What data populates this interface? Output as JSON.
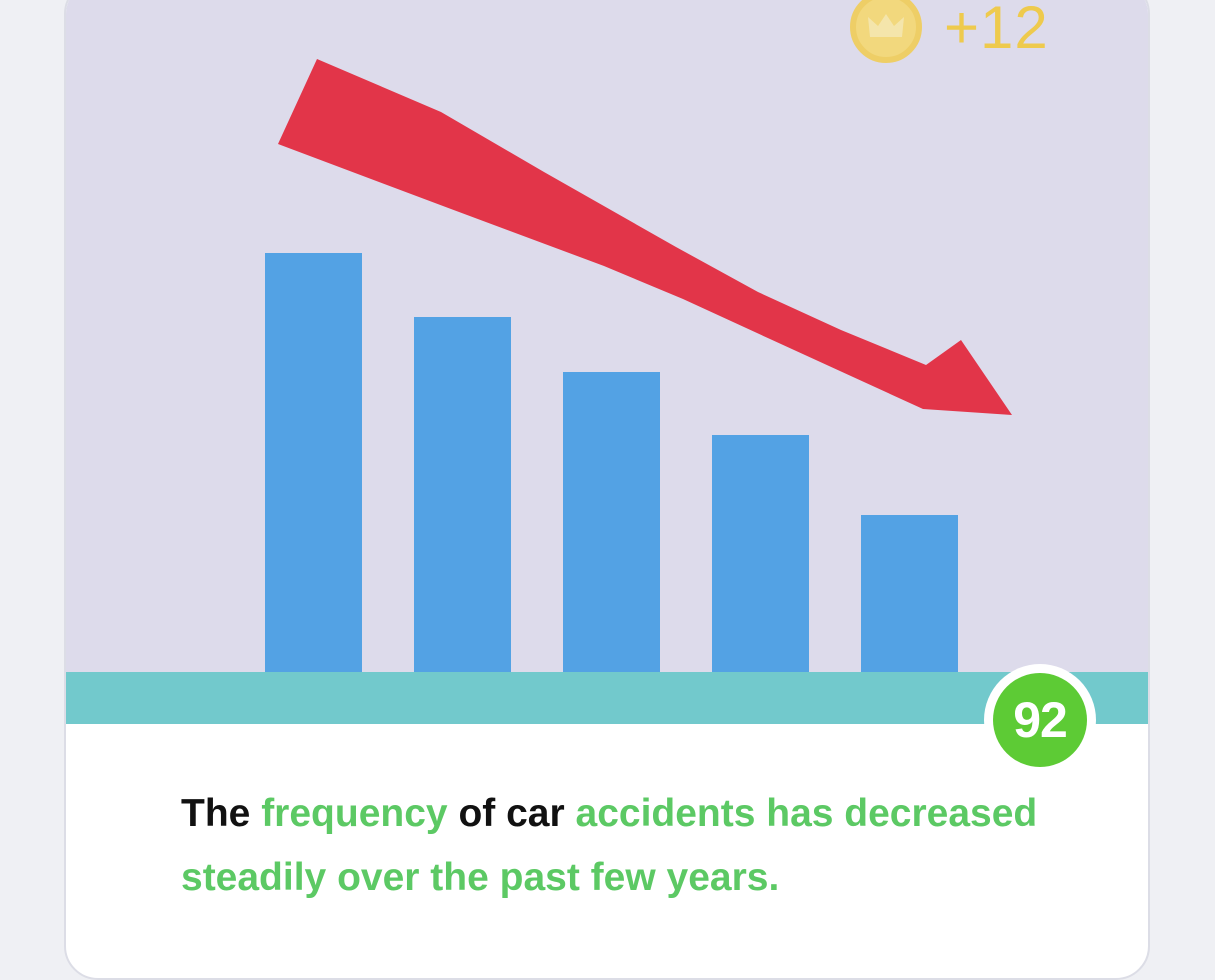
{
  "reward": {
    "amount": "+12",
    "icon": "crown-coin-icon",
    "color": "#f1c832"
  },
  "score": {
    "value": "92",
    "color": "#5dcb35"
  },
  "illustration": {
    "icon": "decreasing-bar-chart-with-down-arrow",
    "bar_color": "#53a2e4",
    "arrow_color": "#e23549",
    "ground_color": "#72c9cc"
  },
  "sentence": {
    "words": [
      {
        "text": "The",
        "highlight": false
      },
      {
        "text": "frequency",
        "highlight": true
      },
      {
        "text": "of",
        "highlight": false
      },
      {
        "text": "car",
        "highlight": false
      },
      {
        "text": "accidents has decreased steadily over the past few years.",
        "highlight": true
      }
    ],
    "highlight_color": "#5cc964"
  }
}
